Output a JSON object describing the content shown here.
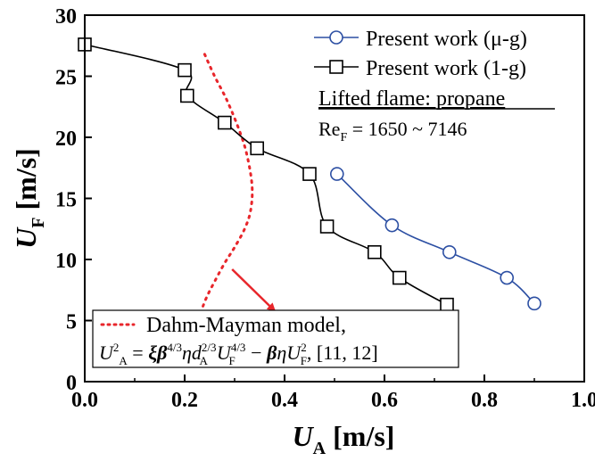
{
  "chart_data": {
    "type": "line",
    "xlabel": {
      "main": "U",
      "sub": "A",
      "unit": " [m/s]"
    },
    "ylabel": {
      "main": "U",
      "sub": "F",
      "unit": " [m/s]"
    },
    "xlim": [
      0.0,
      1.0
    ],
    "ylim": [
      0,
      30
    ],
    "x_ticks": [
      "0.0",
      "0.2",
      "0.4",
      "0.6",
      "0.8",
      "1.0"
    ],
    "y_ticks": [
      "0",
      "5",
      "10",
      "15",
      "20",
      "25",
      "30"
    ],
    "grid": false,
    "legend": {
      "placement": "top-right",
      "entries": [
        {
          "label": "Present work (μ-g)",
          "series": "micro_g"
        },
        {
          "label": "Present work (1-g)",
          "series": "one_g"
        }
      ],
      "note_title": "Lifted flame: propane",
      "note_re": {
        "symbol": "Re",
        "sub": "F",
        "text": " = 1650 ~ 7146"
      }
    },
    "model_legend": {
      "placement": "bottom-left",
      "label": "Dahm-Mayman model,",
      "refs": ", [11, 12]"
    },
    "series": [
      {
        "name": "Present work (μ-g)",
        "key": "micro_g",
        "color": "#2c4fa3",
        "marker": "open-circle",
        "x": [
          0.505,
          0.615,
          0.73,
          0.845,
          0.9
        ],
        "y": [
          17.0,
          12.8,
          10.6,
          8.5,
          6.4
        ]
      },
      {
        "name": "Present work (1-g)",
        "key": "one_g",
        "color": "#000000",
        "marker": "open-square",
        "x": [
          0.0,
          0.2,
          0.205,
          0.28,
          0.345,
          0.45,
          0.485,
          0.58,
          0.63,
          0.725
        ],
        "y": [
          27.6,
          25.5,
          23.4,
          21.2,
          19.1,
          17.0,
          12.7,
          10.6,
          8.5,
          6.3
        ]
      },
      {
        "name": "Dahm-Mayman model",
        "key": "model",
        "color": "#e8262b",
        "style": "dotted",
        "x": [
          0.24,
          0.26,
          0.285,
          0.31,
          0.325,
          0.335,
          0.332,
          0.32,
          0.3,
          0.28,
          0.26,
          0.245,
          0.235
        ],
        "y": [
          26.8,
          25.0,
          23.0,
          20.5,
          18.5,
          16.0,
          14.0,
          12.5,
          11.0,
          9.7,
          8.2,
          7.0,
          6.0
        ]
      }
    ],
    "arrow": {
      "color": "#e8262b",
      "from": [
        0.295,
        9.2
      ],
      "to": [
        0.38,
        5.8
      ]
    }
  }
}
